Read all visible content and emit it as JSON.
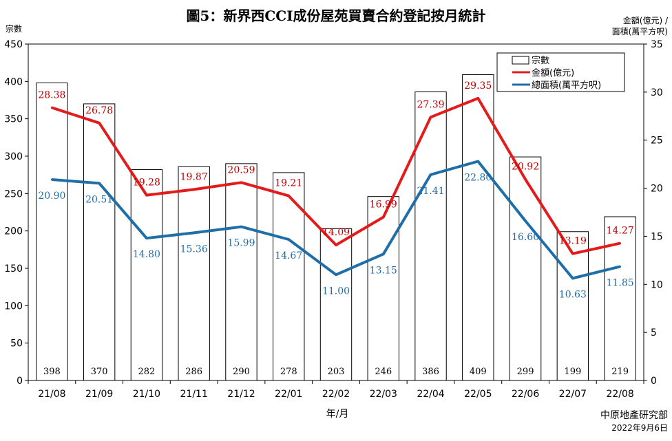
{
  "chart_data": {
    "type": "bar+line",
    "title": "圖5：新界西CCI成份屋苑買賣合約登記按月統計",
    "xlabel": "年/月",
    "ylabel_left": "宗數",
    "ylabel_right": [
      "金額(億元) /",
      "面積(萬平方呎)"
    ],
    "categories": [
      "21/08",
      "21/09",
      "21/10",
      "21/11",
      "21/12",
      "22/01",
      "22/02",
      "22/03",
      "22/04",
      "22/05",
      "22/06",
      "22/07",
      "22/08"
    ],
    "ylim_left": [
      0,
      450
    ],
    "yticks_left": [
      0,
      50,
      100,
      150,
      200,
      250,
      300,
      350,
      400,
      450
    ],
    "ylim_right": [
      0,
      35
    ],
    "yticks_right": [
      0,
      5,
      10,
      15,
      20,
      25,
      30,
      35
    ],
    "series": [
      {
        "name": "宗數",
        "type": "bar",
        "axis": "left",
        "color": "#000000",
        "values": [
          398,
          370,
          282,
          286,
          290,
          278,
          203,
          246,
          386,
          409,
          299,
          199,
          219
        ]
      },
      {
        "name": "金額(億元)",
        "type": "line",
        "axis": "right",
        "color": "#e31b1b",
        "values": [
          28.38,
          26.78,
          19.28,
          19.87,
          20.59,
          19.21,
          14.09,
          16.99,
          27.39,
          29.35,
          20.92,
          13.19,
          14.27
        ]
      },
      {
        "name": "總面積(萬平方呎)",
        "type": "line",
        "axis": "right",
        "color": "#1f6ea8",
        "values": [
          20.9,
          20.51,
          14.8,
          15.36,
          15.99,
          14.67,
          11.0,
          13.15,
          21.41,
          22.8,
          16.6,
          10.63,
          11.85
        ]
      }
    ],
    "legend": {
      "position": "top-right"
    },
    "grid": false
  },
  "source": [
    "中原地產研究部",
    "2022年9月6日"
  ]
}
